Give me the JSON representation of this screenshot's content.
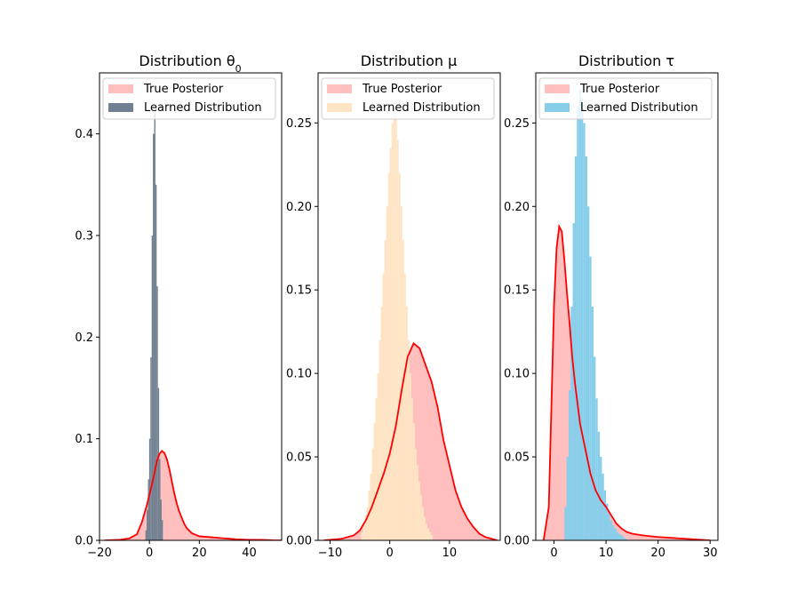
{
  "chart_data": [
    {
      "type": "area",
      "title": "Distribution θ",
      "title_subscript": "0",
      "xlim": [
        -20,
        53
      ],
      "ylim": [
        0,
        0.46
      ],
      "xticks": [
        -20,
        0,
        20,
        40
      ],
      "yticks": [
        0.0,
        0.1,
        0.2,
        0.3,
        0.4
      ],
      "legend_position": "top-left",
      "series": [
        {
          "name": "True Posterior",
          "kind": "kde",
          "fill": "#ffbfbf",
          "line": "#ff0000",
          "x": [
            -18,
            -12,
            -8,
            -5,
            -3,
            -1,
            0,
            1,
            2,
            3,
            4,
            5,
            6,
            7,
            8,
            9,
            10,
            11,
            12,
            13,
            14,
            15,
            17,
            20,
            25,
            30,
            35,
            40,
            45,
            50,
            53
          ],
          "y": [
            0.0,
            0.0005,
            0.002,
            0.006,
            0.018,
            0.035,
            0.045,
            0.055,
            0.066,
            0.078,
            0.085,
            0.088,
            0.086,
            0.08,
            0.07,
            0.058,
            0.046,
            0.036,
            0.028,
            0.022,
            0.016,
            0.012,
            0.007,
            0.004,
            0.003,
            0.002,
            0.001,
            0.0005,
            0.0005,
            0.0,
            0.0
          ]
        },
        {
          "name": "Learned Distribution",
          "kind": "histogram",
          "color": "#708090",
          "bin_start": -1.6,
          "bin_width": 0.5,
          "heights": [
            0.01,
            0.03,
            0.06,
            0.1,
            0.18,
            0.3,
            0.4,
            0.42,
            0.35,
            0.25,
            0.15,
            0.08,
            0.04,
            0.02
          ]
        }
      ]
    },
    {
      "type": "area",
      "title": "Distribution μ",
      "xlim": [
        -12,
        18.5
      ],
      "ylim": [
        0,
        0.28
      ],
      "xticks": [
        -10,
        0,
        10
      ],
      "yticks": [
        0.0,
        0.05,
        0.1,
        0.15,
        0.2,
        0.25
      ],
      "legend_position": "top-left",
      "series": [
        {
          "name": "True Posterior",
          "kind": "kde",
          "fill": "#ffbfbf",
          "line": "#ff0000",
          "x": [
            -11,
            -8,
            -6,
            -5,
            -4,
            -3,
            -2,
            -1,
            0,
            1,
            2,
            3,
            4,
            5,
            6,
            7,
            8,
            9,
            10,
            11,
            12,
            13,
            14,
            15,
            16,
            17,
            18
          ],
          "y": [
            0.0,
            0.001,
            0.003,
            0.006,
            0.012,
            0.02,
            0.03,
            0.04,
            0.052,
            0.068,
            0.09,
            0.11,
            0.118,
            0.115,
            0.105,
            0.095,
            0.08,
            0.06,
            0.045,
            0.03,
            0.02,
            0.013,
            0.008,
            0.004,
            0.002,
            0.001,
            0.0
          ]
        },
        {
          "name": "Learned Distribution",
          "kind": "histogram",
          "color": "#ffe4c4",
          "bin_start": -4.8,
          "bin_width": 0.3,
          "heights": [
            0.005,
            0.01,
            0.015,
            0.02,
            0.03,
            0.04,
            0.055,
            0.07,
            0.085,
            0.1,
            0.12,
            0.14,
            0.16,
            0.18,
            0.2,
            0.22,
            0.235,
            0.25,
            0.26,
            0.255,
            0.24,
            0.22,
            0.2,
            0.18,
            0.16,
            0.14,
            0.12,
            0.1,
            0.085,
            0.07,
            0.055,
            0.045,
            0.035,
            0.027,
            0.02,
            0.014,
            0.01,
            0.007,
            0.005,
            0.003
          ]
        }
      ]
    },
    {
      "type": "area",
      "title": "Distribution τ",
      "xlim": [
        -3.5,
        31.5
      ],
      "ylim": [
        0,
        0.28
      ],
      "xticks": [
        0,
        10,
        20,
        30
      ],
      "yticks": [
        0.0,
        0.05,
        0.1,
        0.15,
        0.2,
        0.25
      ],
      "legend_position": "top-left",
      "series": [
        {
          "name": "True Posterior",
          "kind": "kde",
          "fill": "#ffbfbf",
          "line": "#ff0000",
          "x": [
            -2,
            -1,
            -0.5,
            0,
            0.5,
            1,
            1.5,
            2,
            2.5,
            3,
            3.5,
            4,
            5,
            6,
            7,
            8,
            9,
            10,
            11,
            12,
            13,
            14,
            15,
            17,
            20,
            25,
            30
          ],
          "y": [
            0.0,
            0.02,
            0.08,
            0.14,
            0.175,
            0.188,
            0.185,
            0.168,
            0.148,
            0.13,
            0.11,
            0.095,
            0.07,
            0.055,
            0.04,
            0.03,
            0.024,
            0.02,
            0.015,
            0.01,
            0.007,
            0.005,
            0.004,
            0.003,
            0.002,
            0.001,
            0.0
          ]
        },
        {
          "name": "Learned Distribution",
          "kind": "histogram",
          "color": "#87ceeb",
          "bin_start": 2.0,
          "bin_width": 0.4,
          "heights": [
            0.02,
            0.05,
            0.09,
            0.14,
            0.19,
            0.23,
            0.26,
            0.27,
            0.265,
            0.25,
            0.23,
            0.2,
            0.17,
            0.14,
            0.11,
            0.085,
            0.065,
            0.05,
            0.04,
            0.03,
            0.022,
            0.016,
            0.012,
            0.009,
            0.007,
            0.005,
            0.004,
            0.003,
            0.002,
            0.001
          ]
        }
      ]
    }
  ]
}
